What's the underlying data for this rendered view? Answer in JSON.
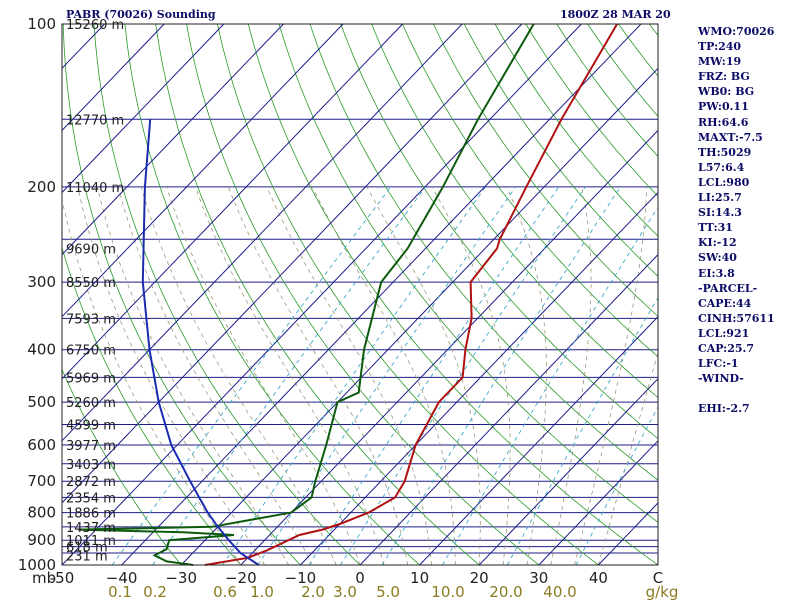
{
  "title_left": "PABR (70026) Sounding",
  "title_right": "1800Z 28 MAR 20",
  "indices": [
    "WMO:70026",
    "TP:240",
    "MW:19",
    "FRZ: BG",
    "WB0: BG",
    "PW:0.11",
    "RH:64.6",
    "MAXT:-7.5",
    "TH:5029",
    "L57:6.4",
    "LCL:980",
    "LI:25.7",
    "SI:14.3",
    "TT:31",
    "KI:-12",
    "SW:40",
    "EI:3.8",
    "-PARCEL-",
    "CAPE:44",
    "CINH:57611",
    "LCL:921",
    "CAP:25.7",
    "LFC:-1",
    "-WIND-",
    "",
    "EHI:-2.7"
  ],
  "chart_data": {
    "type": "line",
    "title": "PABR (70026) Sounding",
    "subtitle": "1800Z 28 MAR 20",
    "xlabel_units": [
      "g/kg"
    ],
    "y_scale": "log",
    "ylim": [
      1000,
      100
    ],
    "xlim": [
      -50,
      50
    ],
    "pressure_ticks": [
      100,
      200,
      300,
      400,
      500,
      600,
      700,
      800,
      900,
      1000
    ],
    "pressure_tick_labels": [
      "100",
      "200",
      "300",
      "400",
      "500",
      "600",
      "700",
      "800",
      "900",
      "1000"
    ],
    "temperature_ticks": [
      -50,
      -40,
      -30,
      -20,
      -10,
      0,
      10,
      20,
      30,
      40,
      50
    ],
    "temperature_tick_labels": [
      "-50",
      "−40",
      "−30",
      "−20",
      "−10",
      "0",
      "10",
      "20",
      "30",
      "40",
      "C"
    ],
    "mixing_ratio_labels": [
      "0.1",
      "0.2",
      "0.6",
      "1.0",
      "2.0",
      "3.0",
      "5.0",
      "10.0",
      "20.0",
      "40.0",
      "g/kg"
    ],
    "height_labels": [
      "15260 m",
      "12770 m",
      "11040 m",
      "9690 m",
      "8550 m",
      "7593 m",
      "6750 m",
      "5969 m",
      "5260 m",
      "4599 m",
      "3977 m",
      "3403 m",
      "2872 m",
      "2354 m",
      "1886 m",
      "1437 m",
      "1011 m",
      "618 m",
      "231 m"
    ],
    "height_label_pressures": [
      100,
      150,
      200,
      260,
      300,
      350,
      400,
      450,
      500,
      550,
      600,
      650,
      700,
      750,
      800,
      850,
      900,
      925,
      960
    ],
    "series": [
      {
        "color": "#b01010",
        "values": [
          [
            1000,
            -26
          ],
          [
            990,
            -24
          ],
          [
            970,
            -20
          ],
          [
            940,
            -18
          ],
          [
            900,
            -16
          ],
          [
            880,
            -15
          ],
          [
            860,
            -12
          ],
          [
            840,
            -10
          ],
          [
            800,
            -7
          ],
          [
            750,
            -5
          ],
          [
            700,
            -6
          ],
          [
            600,
            -10
          ],
          [
            500,
            -13
          ],
          [
            450,
            -13
          ],
          [
            400,
            -17
          ],
          [
            350,
            -21
          ],
          [
            300,
            -27
          ],
          [
            260,
            -28
          ],
          [
            250,
            -29
          ],
          [
            200,
            -33
          ],
          [
            150,
            -38
          ],
          [
            100,
            -44
          ]
        ]
      },
      {
        "color": "#0d5a0d",
        "values": [
          [
            1000,
            -28
          ],
          [
            985,
            -33
          ],
          [
            960,
            -36
          ],
          [
            935,
            -35
          ],
          [
            900,
            -36
          ],
          [
            880,
            -26
          ],
          [
            870,
            -35
          ],
          [
            860,
            -53
          ],
          [
            850,
            -31
          ],
          [
            800,
            -20
          ],
          [
            750,
            -19
          ],
          [
            700,
            -21
          ],
          [
            600,
            -25
          ],
          [
            500,
            -30
          ],
          [
            480,
            -28
          ],
          [
            400,
            -34
          ],
          [
            300,
            -42
          ],
          [
            260,
            -43
          ],
          [
            200,
            -47
          ],
          [
            150,
            -52
          ],
          [
            100,
            -58
          ]
        ]
      },
      {
        "color": "#1a2bb0",
        "values": [
          [
            1000,
            -17
          ],
          [
            950,
            -22
          ],
          [
            900,
            -26
          ],
          [
            850,
            -30
          ],
          [
            800,
            -34
          ],
          [
            700,
            -42
          ],
          [
            600,
            -51
          ],
          [
            500,
            -60
          ],
          [
            400,
            -70
          ],
          [
            300,
            -82
          ],
          [
            200,
            -97
          ],
          [
            150,
            -107
          ]
        ]
      }
    ]
  }
}
